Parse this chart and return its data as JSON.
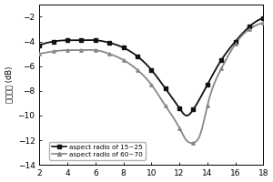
{
  "ylabel": "反射损耗 (dB)",
  "xlabel": "",
  "xlim": [
    2,
    18
  ],
  "ylim": [
    -14,
    -1
  ],
  "yticks": [
    -14,
    -12,
    -10,
    -8,
    -6,
    -4,
    -2
  ],
  "xticks": [
    2,
    4,
    6,
    8,
    10,
    12,
    14,
    16,
    18
  ],
  "line1_label": "aspect radio of 15~25",
  "line1_color": "#111111",
  "line2_label": "aspect radio of 60~70",
  "line2_color": "#888888",
  "line1_x": [
    2,
    3,
    4,
    5,
    6,
    7,
    8,
    9,
    10,
    11,
    12,
    12.5,
    13,
    14,
    15,
    16,
    17,
    18
  ],
  "line1_y": [
    -4.3,
    -4.0,
    -3.9,
    -3.9,
    -3.9,
    -4.1,
    -4.5,
    -5.2,
    -6.3,
    -7.8,
    -9.4,
    -10.0,
    -9.5,
    -7.5,
    -5.5,
    -4.0,
    -2.8,
    -2.1
  ],
  "line2_x": [
    2,
    3,
    4,
    5,
    6,
    7,
    8,
    9,
    10,
    11,
    12,
    12.5,
    13,
    13.5,
    14,
    15,
    16,
    17,
    18
  ],
  "line2_y": [
    -5.0,
    -4.8,
    -4.7,
    -4.7,
    -4.7,
    -5.0,
    -5.5,
    -6.3,
    -7.5,
    -9.2,
    -11.0,
    -12.0,
    -12.2,
    -11.5,
    -9.2,
    -6.2,
    -4.2,
    -3.0,
    -2.5
  ]
}
